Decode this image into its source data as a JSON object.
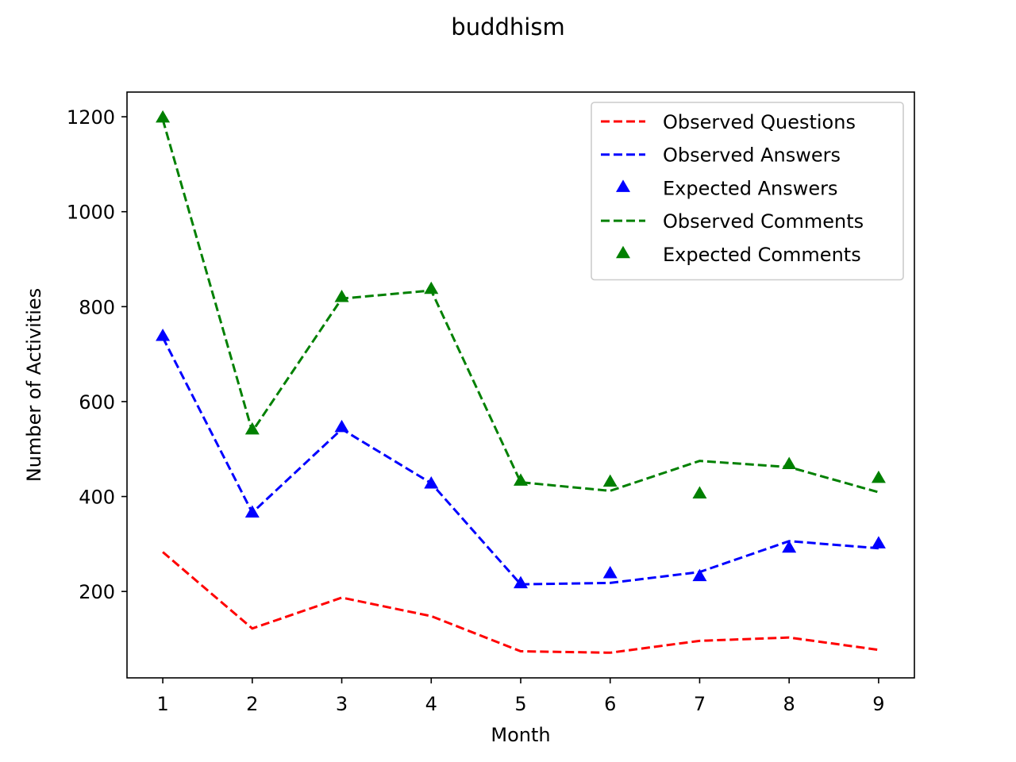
{
  "chart_data": {
    "type": "line",
    "title": "buddhism",
    "xlabel": "Month",
    "ylabel": "Number of Activities",
    "x": [
      1,
      2,
      3,
      4,
      5,
      6,
      7,
      8,
      9
    ],
    "xlim": [
      0.6,
      9.4
    ],
    "ylim": [
      18,
      1252
    ],
    "yticks": [
      200,
      400,
      600,
      800,
      1000,
      1200
    ],
    "grid": false,
    "legend_position": "top-right",
    "series": [
      {
        "name": "Observed Questions",
        "style": "dashed-line",
        "color": "#ff0000",
        "values": [
          283,
          122,
          187,
          148,
          74,
          71,
          96,
          103,
          77
        ]
      },
      {
        "name": "Observed Answers",
        "style": "dashed-line",
        "color": "#0000ff",
        "values": [
          735,
          366,
          542,
          428,
          215,
          218,
          241,
          306,
          291
        ]
      },
      {
        "name": "Expected Answers",
        "style": "triangle-markers",
        "color": "#0000ff",
        "values": [
          737,
          365,
          545,
          426,
          216,
          237,
          231,
          291,
          300
        ]
      },
      {
        "name": "Observed Comments",
        "style": "dashed-line",
        "color": "#008000",
        "values": [
          1194,
          537,
          817,
          834,
          430,
          412,
          475,
          462,
          409
        ]
      },
      {
        "name": "Expected Comments",
        "style": "triangle-markers",
        "color": "#008000",
        "values": [
          1197,
          540,
          819,
          836,
          432,
          430,
          405,
          467,
          438
        ]
      }
    ]
  }
}
